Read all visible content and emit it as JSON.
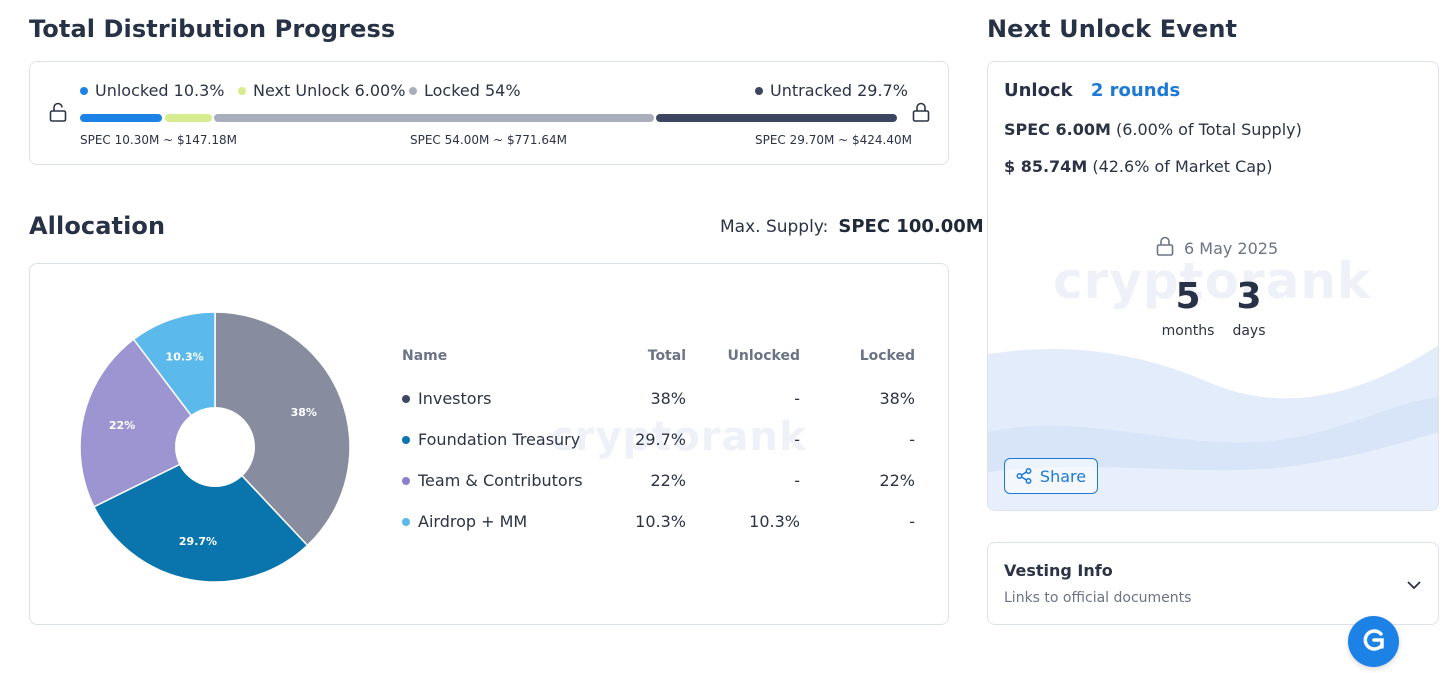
{
  "progress": {
    "title": "Total Distribution Progress",
    "legend": [
      {
        "label": "Unlocked 10.3%",
        "color": "#1c82e6"
      },
      {
        "label": "Next Unlock 6.00%",
        "color": "#d6ec8e"
      },
      {
        "label": "Locked 54%",
        "color": "#a9aebd"
      },
      {
        "label": "Untracked 29.7%",
        "color": "#3d4660"
      }
    ],
    "segments": [
      {
        "name": "unlocked",
        "percent": 10.3,
        "color": "#1c82e6"
      },
      {
        "name": "next-unlock",
        "percent": 6.0,
        "color": "#d6ec8e"
      },
      {
        "name": "locked",
        "percent": 54,
        "color": "#a9aebd"
      },
      {
        "name": "untracked",
        "percent": 29.7,
        "color": "#3d4660"
      }
    ],
    "labels": {
      "unlocked": "SPEC 10.30M ~ $147.18M",
      "locked": "SPEC 54.00M ~ $771.64M",
      "untracked": "SPEC 29.70M ~ $424.40M"
    },
    "lock_icon_left": "lock-open-icon",
    "lock_icon_right": "lock-open-icon"
  },
  "allocation": {
    "title": "Allocation",
    "max_supply_label": "Max. Supply:",
    "max_supply_value": "SPEC 100.00M",
    "watermark": "cryptorank",
    "columns": {
      "name": "Name",
      "total": "Total",
      "unlocked": "Unlocked",
      "locked": "Locked"
    },
    "rows": [
      {
        "name": "Investors",
        "total": "38%",
        "unlocked": "-",
        "locked": "38%",
        "color": "#878c9f"
      },
      {
        "name": "Foundation Treasury",
        "total": "29.7%",
        "unlocked": "-",
        "locked": "-",
        "color": "#0a74ad"
      },
      {
        "name": "Team & Contributors",
        "total": "22%",
        "unlocked": "-",
        "locked": "22%",
        "color": "#9d94d2"
      },
      {
        "name": "Airdrop + MM",
        "total": "10.3%",
        "unlocked": "10.3%",
        "locked": "-",
        "color": "#5cb9ec"
      }
    ],
    "dot_colors": [
      "#3d4660",
      "#0a74ad",
      "#8b7fcd",
      "#5cb9ec"
    ]
  },
  "chart_data": {
    "type": "pie",
    "title": "Allocation",
    "categories": [
      "Investors",
      "Foundation Treasury",
      "Team & Contributors",
      "Airdrop + MM"
    ],
    "values": [
      38,
      29.7,
      22,
      10.3
    ],
    "slice_labels": [
      "38%",
      "29.7%",
      "22%",
      "10.3%"
    ],
    "colors": [
      "#878c9f",
      "#0a74ad",
      "#9d94d2",
      "#5cb9ec"
    ]
  },
  "unlock": {
    "title": "Next Unlock Event",
    "unlock_label": "Unlock",
    "rounds": "2 rounds",
    "supply_value": "SPEC 6.00M",
    "supply_note": "(6.00% of Total Supply)",
    "cap_value": "$ 85.74M",
    "cap_note": "(42.6% of Market Cap)",
    "date": "6 May 2025",
    "months_value": "5",
    "months_label": "months",
    "days_value": "3",
    "days_label": "days",
    "watermark": "cryptorank",
    "share_label": "Share",
    "accent": "#1c79d6"
  },
  "vesting": {
    "title": "Vesting Info",
    "subtitle": "Links to official documents"
  }
}
